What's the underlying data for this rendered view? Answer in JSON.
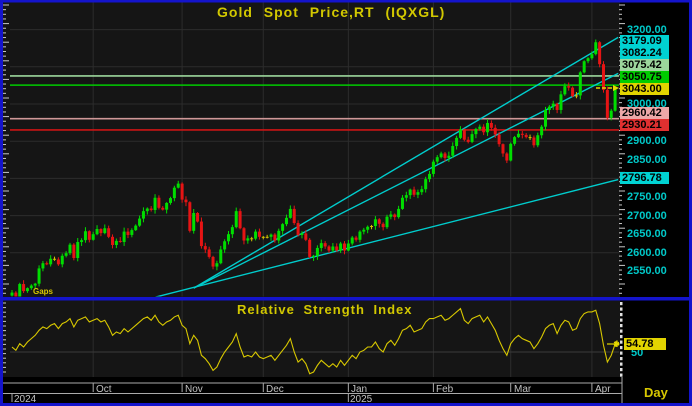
{
  "window": {
    "gaps_label": "Gaps",
    "border_color": "#1414cc"
  },
  "colors": {
    "candle_up": "#00dd00",
    "candle_down": "#e61414",
    "candle_doji": "#d4c400",
    "trendline": "#00cdcd",
    "rsi_line": "#d8c800",
    "title_text": "#d2c800",
    "axis_text": "#00c8c8",
    "month_text": "#c0c0c0",
    "grid": "#2c2c2c",
    "panel_bg": "#151515"
  },
  "chart_data": {
    "type": "candlestick",
    "title": "Gold Spot Price,RT (IQXGL)",
    "symbol": "IQXGL",
    "timeframe": "Day",
    "current_price": "3043.00",
    "open_first": 2485,
    "closes": [
      2493,
      2470,
      2516,
      2497,
      2505,
      2512,
      2517,
      2558,
      2572,
      2569,
      2584,
      2582,
      2569,
      2592,
      2599,
      2622,
      2586,
      2629,
      2634,
      2658,
      2635,
      2650,
      2664,
      2653,
      2666,
      2643,
      2621,
      2632,
      2629,
      2657,
      2648,
      2661,
      2673,
      2692,
      2712,
      2719,
      2715,
      2748,
      2721,
      2716,
      2734,
      2747,
      2775,
      2786,
      2743,
      2736,
      2659,
      2707,
      2684,
      2618,
      2609,
      2589,
      2563,
      2572,
      2609,
      2631,
      2650,
      2669,
      2712,
      2666,
      2633,
      2639,
      2638,
      2657,
      2643,
      2641,
      2643,
      2649,
      2633,
      2659,
      2677,
      2694,
      2718,
      2680,
      2648,
      2652,
      2635,
      2589,
      2592,
      2613,
      2626,
      2617,
      2606,
      2617,
      2606,
      2625,
      2606,
      2625,
      2641,
      2635,
      2657,
      2662,
      2670,
      2672,
      2690,
      2678,
      2669,
      2697,
      2703,
      2696,
      2718,
      2748,
      2755,
      2770,
      2756,
      2763,
      2771,
      2798,
      2812,
      2845,
      2857,
      2867,
      2855,
      2861,
      2887,
      2909,
      2932,
      2904,
      2898,
      2919,
      2933,
      2939,
      2924,
      2949,
      2936,
      2918,
      2892,
      2867,
      2848,
      2893,
      2911,
      2920,
      2917,
      2911,
      2910,
      2889,
      2916,
      2939,
      2984,
      2993,
      3001,
      2984,
      3026,
      3048,
      3044,
      3021,
      3023,
      3085,
      3115,
      3123,
      3134,
      3166,
      3107,
      3038,
      2963,
      2982,
      3043
    ],
    "y_axis": {
      "plain_ticks": [
        {
          "text": "3200.00",
          "price": 3200
        },
        {
          "text": "3000.00",
          "price": 3000
        },
        {
          "text": "2900.00",
          "price": 2900
        },
        {
          "text": "2850.00",
          "price": 2850
        },
        {
          "text": "2750.00",
          "price": 2750
        },
        {
          "text": "2700.00",
          "price": 2700
        },
        {
          "text": "2650.00",
          "price": 2650
        },
        {
          "text": "2600.00",
          "price": 2600
        },
        {
          "text": "2550.00",
          "price": 2550
        }
      ],
      "tagged_labels": [
        {
          "text": "3179.09",
          "bg": "#00d2d2",
          "kind": "trendline-value"
        },
        {
          "text": "3082.24",
          "bg": "#00d2d2",
          "kind": "trendline-value"
        },
        {
          "text": "3075.42",
          "bg": "#9cd69c",
          "kind": "resistance"
        },
        {
          "text": "3050.75",
          "bg": "#00cc00",
          "kind": "resistance"
        },
        {
          "text": "3043.00",
          "bg": "#e2d400",
          "kind": "last-price"
        },
        {
          "text": "2960.42",
          "bg": "#eca8a8",
          "kind": "support"
        },
        {
          "text": "2930.21",
          "bg": "#e03030",
          "kind": "support"
        },
        {
          "text": "2796.78",
          "bg": "#00d2d2",
          "kind": "trendline-value"
        }
      ]
    },
    "levels": [
      {
        "price": 3075.42,
        "color": "#9cd69c"
      },
      {
        "price": 3050.75,
        "color": "#00cc00"
      },
      {
        "price": 2960.42,
        "color": "#cf9898"
      },
      {
        "price": 2930.21,
        "color": "#cc1414"
      }
    ],
    "trendlines": [
      {
        "x1_index": 47,
        "price1": 2505,
        "x2_index": 156.8,
        "price2": 3179.09
      },
      {
        "x1_index": 47,
        "price1": 2505,
        "x2_index": 156.8,
        "price2": 3082.24
      },
      {
        "x1_index": 36,
        "price1": 2478,
        "x2_index": 156.8,
        "price2": 2796.78
      }
    ],
    "x_axis": {
      "years": [
        {
          "label": "2024",
          "index": 0
        },
        {
          "label": "2025",
          "index": 87
        }
      ],
      "months": [
        {
          "label": "Oct",
          "index": 21
        },
        {
          "label": "Nov",
          "index": 44
        },
        {
          "label": "Dec",
          "index": 65
        },
        {
          "label": "Jan",
          "index": 87
        },
        {
          "label": "Feb",
          "index": 109
        },
        {
          "label": "Mar",
          "index": 129
        },
        {
          "label": "Apr",
          "index": 150
        }
      ],
      "timeframe_label": "Day"
    },
    "rsi": {
      "title": "Relative Strength Index",
      "current_value": "54.78",
      "fifty_tick": "50",
      "values": [
        53,
        51,
        55,
        53,
        56,
        58,
        60,
        63,
        65,
        64,
        66,
        67,
        64,
        67,
        68,
        70,
        65,
        69,
        70,
        71,
        68,
        69,
        70,
        68,
        69,
        65,
        60,
        62,
        61,
        64,
        62,
        64,
        66,
        68,
        70,
        71,
        69,
        72,
        68,
        66,
        68,
        69,
        71,
        72,
        66,
        64,
        55,
        60,
        57,
        48,
        46,
        43,
        39,
        41,
        46,
        50,
        53,
        56,
        61,
        53,
        47,
        48,
        47,
        50,
        47,
        46,
        47,
        48,
        45,
        48,
        51,
        54,
        58,
        50,
        44,
        46,
        43,
        37,
        38,
        42,
        45,
        43,
        41,
        43,
        41,
        45,
        42,
        45,
        48,
        46,
        50,
        51,
        53,
        53,
        56,
        52,
        50,
        55,
        57,
        54,
        58,
        63,
        64,
        66,
        62,
        63,
        64,
        68,
        70,
        70,
        71,
        72,
        69,
        70,
        72,
        74,
        76,
        69,
        67,
        70,
        71,
        72,
        68,
        71,
        67,
        63,
        57,
        52,
        48,
        55,
        58,
        60,
        58,
        57,
        56,
        52,
        55,
        59,
        64,
        66,
        67,
        61,
        66,
        69,
        68,
        63,
        64,
        70,
        73,
        74,
        74,
        75,
        67,
        54,
        44,
        48,
        54.78
      ]
    }
  }
}
